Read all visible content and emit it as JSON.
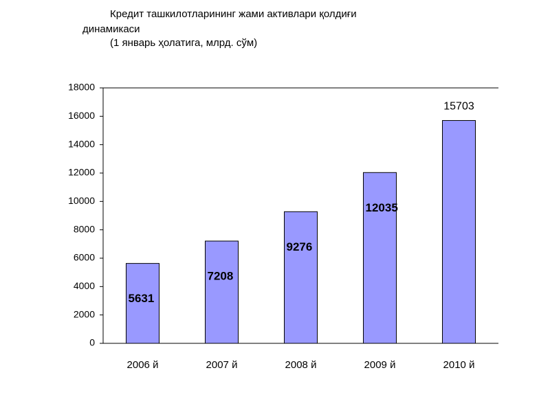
{
  "chart_data": {
    "type": "bar",
    "title": "Кредит ташкилотларининг жами активлари қолдиғи динамикаси",
    "subtitle": "(1 январь ҳолатига, млрд. сўм)",
    "categories": [
      "2006 й",
      "2007 й",
      "2008 й",
      "2009 й",
      "2010 й"
    ],
    "values": [
      5631,
      7208,
      9276,
      12035,
      15703
    ],
    "color": "#9999ff",
    "ylim": [
      0,
      18000
    ],
    "yticks": [
      0,
      2000,
      4000,
      6000,
      8000,
      10000,
      12000,
      14000,
      16000,
      18000
    ]
  }
}
